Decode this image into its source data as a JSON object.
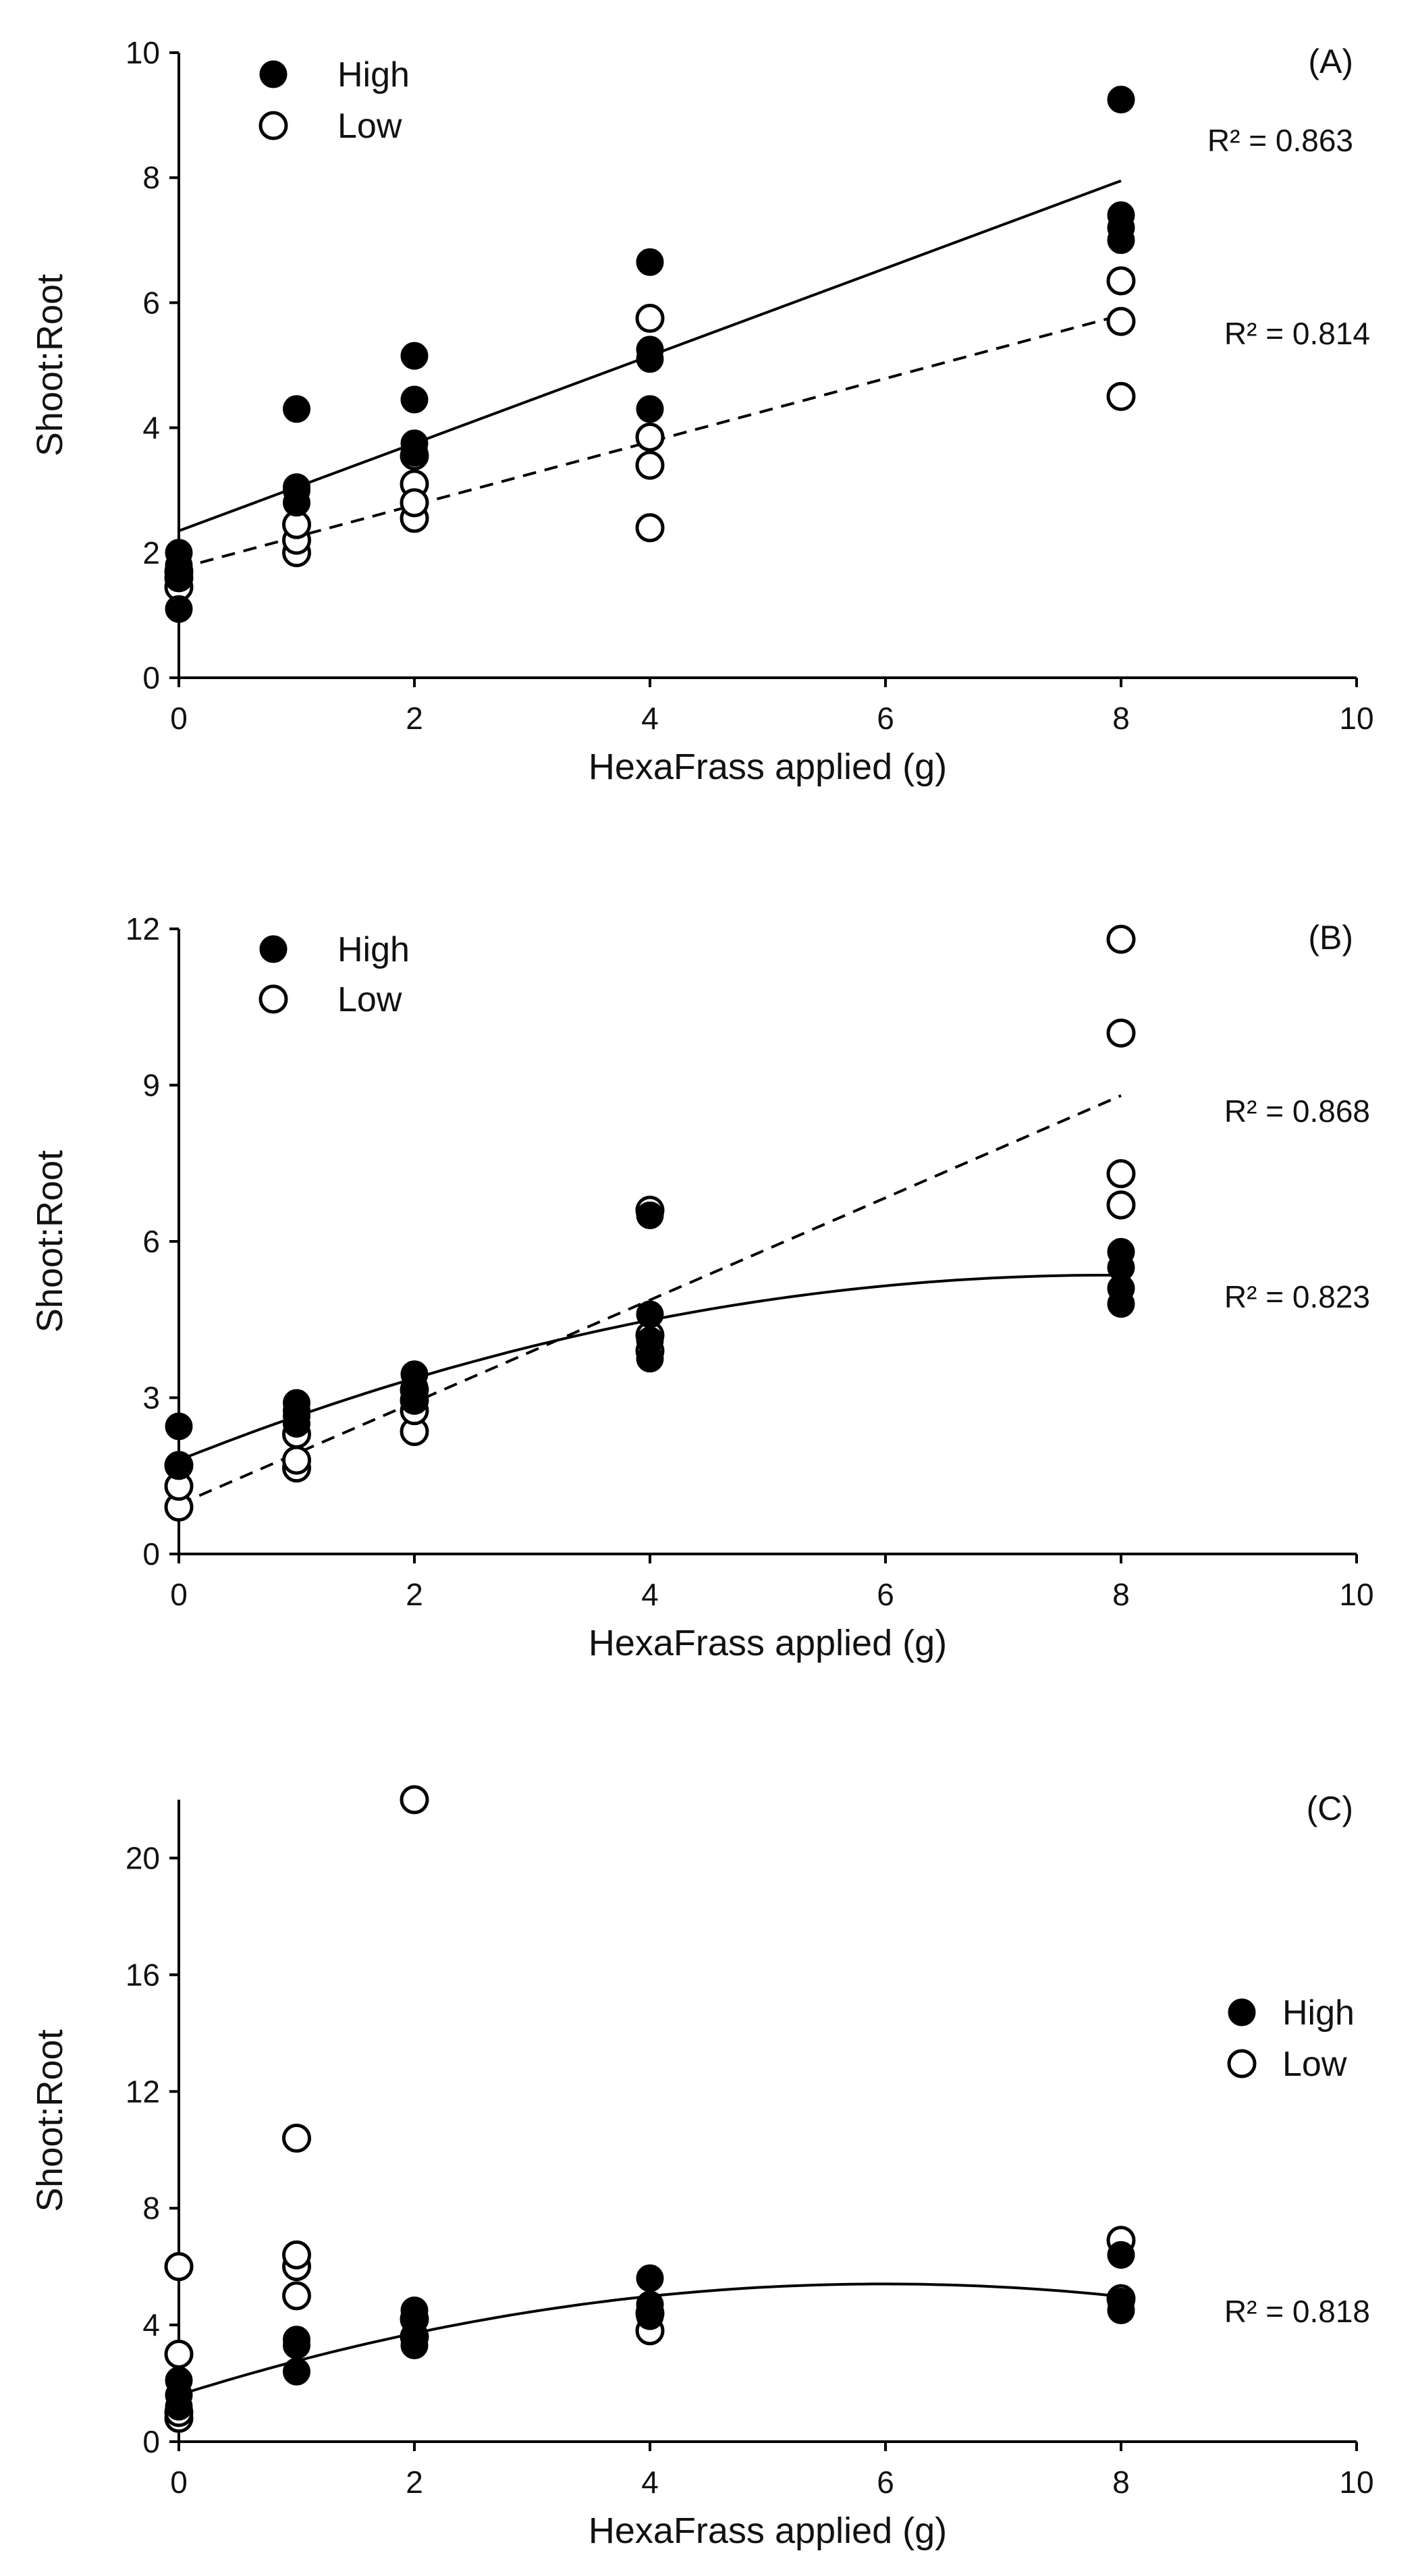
{
  "chart_data": [
    {
      "type": "scatter",
      "panel": "(A)",
      "xlabel": "HexaFrass applied (g)",
      "ylabel": "Shoot:Root",
      "xlim": [
        0,
        10
      ],
      "ylim": [
        0,
        10
      ],
      "xticks": [
        0,
        2,
        4,
        6,
        8,
        10
      ],
      "yticks": [
        0,
        2,
        4,
        6,
        8,
        10
      ],
      "legend": {
        "placement": "top-left",
        "entries": [
          "High",
          "Low"
        ]
      },
      "series": [
        {
          "name": "High",
          "marker": "filled-circle",
          "points": [
            [
              0,
              1.1
            ],
            [
              0,
              1.6
            ],
            [
              0,
              1.8
            ],
            [
              0,
              2.0
            ],
            [
              1,
              2.8
            ],
            [
              1,
              3.0
            ],
            [
              1,
              3.05
            ],
            [
              1,
              4.3
            ],
            [
              2,
              3.6
            ],
            [
              2,
              3.75
            ],
            [
              2,
              4.45
            ],
            [
              2,
              5.15
            ],
            [
              4,
              4.3
            ],
            [
              4,
              5.1
            ],
            [
              4,
              5.25
            ],
            [
              4,
              6.65
            ],
            [
              8,
              7.0
            ],
            [
              8,
              7.2
            ],
            [
              8,
              7.4
            ],
            [
              8,
              9.25
            ]
          ],
          "trend": {
            "kind": "linear",
            "style": "solid",
            "x": [
              0,
              8
            ],
            "y": [
              2.35,
              7.95
            ],
            "r2_label": "R² = 0.863"
          }
        },
        {
          "name": "Low",
          "marker": "open-circle",
          "points": [
            [
              0,
              1.45
            ],
            [
              0,
              1.6
            ],
            [
              0,
              1.7
            ],
            [
              1,
              2.0
            ],
            [
              1,
              2.2
            ],
            [
              1,
              2.45
            ],
            [
              2,
              2.55
            ],
            [
              2,
              3.1
            ],
            [
              2,
              3.55
            ],
            [
              2,
              2.8
            ],
            [
              4,
              2.4
            ],
            [
              4,
              3.4
            ],
            [
              4,
              3.85
            ],
            [
              4,
              5.75
            ],
            [
              8,
              4.5
            ],
            [
              8,
              5.7
            ],
            [
              8,
              6.35
            ]
          ],
          "trend": {
            "kind": "linear",
            "style": "dashed",
            "x": [
              0,
              8
            ],
            "y": [
              1.75,
              5.8
            ],
            "r2_label": "R² = 0.814"
          }
        }
      ]
    },
    {
      "type": "scatter",
      "panel": "(B)",
      "xlabel": "HexaFrass applied (g)",
      "ylabel": "Shoot:Root",
      "xlim": [
        0,
        10
      ],
      "ylim": [
        0,
        12
      ],
      "xticks": [
        0,
        2,
        4,
        6,
        8,
        10
      ],
      "yticks": [
        0,
        3,
        6,
        9,
        12
      ],
      "legend": {
        "placement": "top-left",
        "entries": [
          "High",
          "Low"
        ]
      },
      "series": [
        {
          "name": "High",
          "marker": "filled-circle",
          "points": [
            [
              0,
              1.7
            ],
            [
              0,
              2.45
            ],
            [
              1,
              2.5
            ],
            [
              1,
              2.65
            ],
            [
              1,
              2.75
            ],
            [
              1,
              2.9
            ],
            [
              2,
              3.0
            ],
            [
              2,
              3.2
            ],
            [
              2,
              3.45
            ],
            [
              4,
              3.75
            ],
            [
              4,
              4.1
            ],
            [
              4,
              4.6
            ],
            [
              4,
              6.5
            ],
            [
              8,
              4.8
            ],
            [
              8,
              5.1
            ],
            [
              8,
              5.5
            ],
            [
              8,
              5.8
            ]
          ],
          "trend": {
            "kind": "quadratic",
            "style": "solid",
            "coefficients": [
              1.8,
              0.9,
              -0.057
            ],
            "x_range": [
              0,
              8
            ],
            "r2_label": "R² = 0.823"
          }
        },
        {
          "name": "Low",
          "marker": "open-circle",
          "points": [
            [
              0,
              0.9
            ],
            [
              0,
              1.3
            ],
            [
              0,
              1.7
            ],
            [
              1,
              1.65
            ],
            [
              1,
              1.8
            ],
            [
              1,
              2.3
            ],
            [
              2,
              2.35
            ],
            [
              2,
              2.75
            ],
            [
              2,
              2.95
            ],
            [
              2,
              3.15
            ],
            [
              4,
              3.9
            ],
            [
              4,
              4.2
            ],
            [
              4,
              6.6
            ],
            [
              8,
              6.7
            ],
            [
              8,
              7.3
            ],
            [
              8,
              10.0
            ],
            [
              8,
              11.8
            ]
          ],
          "trend": {
            "kind": "linear",
            "style": "dashed",
            "x": [
              0,
              8
            ],
            "y": [
              0.95,
              8.8
            ],
            "r2_label": "R² = 0.868"
          }
        }
      ]
    },
    {
      "type": "scatter",
      "panel": "(C)",
      "xlabel": "HexaFrass applied (g)",
      "ylabel": "Shoot:Root",
      "xlim": [
        0,
        10
      ],
      "ylim": [
        0,
        22
      ],
      "xticks": [
        0,
        2,
        4,
        6,
        8,
        10
      ],
      "yticks": [
        0,
        4,
        8,
        12,
        16,
        20
      ],
      "legend": {
        "placement": "right",
        "entries": [
          "High",
          "Low"
        ]
      },
      "series": [
        {
          "name": "High",
          "marker": "filled-circle",
          "points": [
            [
              0,
              1.2
            ],
            [
              0,
              1.6
            ],
            [
              0,
              2.1
            ],
            [
              1,
              2.4
            ],
            [
              1,
              3.3
            ],
            [
              1,
              3.5
            ],
            [
              2,
              3.3
            ],
            [
              2,
              3.6
            ],
            [
              2,
              4.2
            ],
            [
              2,
              4.5
            ],
            [
              4,
              4.3
            ],
            [
              4,
              4.7
            ],
            [
              4,
              5.6
            ],
            [
              8,
              4.5
            ],
            [
              8,
              4.8
            ],
            [
              8,
              6.4
            ]
          ],
          "trend": {
            "kind": "quadratic",
            "style": "solid",
            "coefficients": [
              1.6,
              1.27,
              -0.106
            ],
            "x_range": [
              0,
              8
            ],
            "r2_label": "R² = 0.818"
          }
        },
        {
          "name": "Low",
          "marker": "open-circle",
          "points": [
            [
              0,
              0.8
            ],
            [
              0,
              1.0
            ],
            [
              0,
              3.0
            ],
            [
              0,
              6.0
            ],
            [
              1,
              5.0
            ],
            [
              1,
              6.0
            ],
            [
              1,
              6.4
            ],
            [
              1,
              10.4
            ],
            [
              2,
              3.6
            ],
            [
              2,
              4.2
            ],
            [
              2,
              22.0
            ],
            [
              4,
              3.8
            ],
            [
              4,
              4.4
            ],
            [
              8,
              4.9
            ],
            [
              8,
              6.9
            ]
          ],
          "trend": null
        }
      ]
    }
  ]
}
